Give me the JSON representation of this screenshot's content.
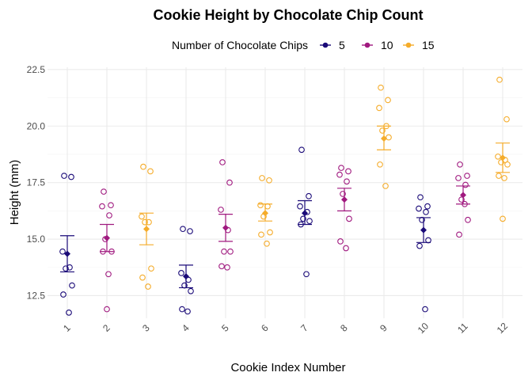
{
  "chart_data": {
    "type": "scatter",
    "title": "Cookie Height by Chocolate Chip Count",
    "xlabel": "Cookie Index Number",
    "ylabel": "Height (mm)",
    "ylim": [
      11.5,
      22.6
    ],
    "x_ticks": [
      "1",
      "2",
      "3",
      "4",
      "5",
      "6",
      "7",
      "8",
      "9",
      "10",
      "11",
      "12"
    ],
    "y_ticks": [
      12.5,
      15.0,
      17.5,
      20.0,
      22.5
    ],
    "y_tick_labels": [
      "12.5",
      "15.0",
      "17.5",
      "20.0",
      "22.5"
    ],
    "grid": true,
    "legend": {
      "title": "Number of Chocolate Chips",
      "position": "top"
    },
    "series": [
      {
        "name": "5",
        "color": "#1a0a78"
      },
      {
        "name": "10",
        "color": "#a0197f"
      },
      {
        "name": "15",
        "color": "#f5ac2a"
      }
    ],
    "groups": [
      {
        "x": 1,
        "series": "5",
        "mean": 14.35,
        "lower": 13.55,
        "upper": 15.15,
        "points": [
          17.8,
          17.75,
          14.45,
          13.75,
          13.7,
          12.95,
          12.55,
          11.75
        ]
      },
      {
        "x": 2,
        "series": "10",
        "mean": 15.05,
        "lower": 14.45,
        "upper": 15.65,
        "points": [
          17.1,
          16.5,
          16.45,
          16.05,
          15.0,
          14.45,
          14.45,
          13.45,
          11.9
        ]
      },
      {
        "x": 3,
        "series": "15",
        "mean": 15.45,
        "lower": 14.75,
        "upper": 16.15,
        "points": [
          18.2,
          18.0,
          16.0,
          15.75,
          15.75,
          13.7,
          13.3,
          12.9
        ]
      },
      {
        "x": 4,
        "series": "5",
        "mean": 13.35,
        "lower": 12.85,
        "upper": 13.85,
        "points": [
          15.45,
          15.35,
          13.5,
          13.2,
          12.95,
          12.7,
          11.9,
          11.8
        ]
      },
      {
        "x": 5,
        "series": "10",
        "mean": 15.5,
        "lower": 14.9,
        "upper": 16.1,
        "points": [
          18.4,
          17.5,
          16.3,
          15.4,
          14.45,
          14.45,
          13.8,
          13.75
        ]
      },
      {
        "x": 6,
        "series": "15",
        "mean": 16.15,
        "lower": 15.8,
        "upper": 16.55,
        "points": [
          17.7,
          17.6,
          16.5,
          16.45,
          16.0,
          15.3,
          15.2,
          14.8
        ]
      },
      {
        "x": 7,
        "series": "5",
        "mean": 16.15,
        "lower": 15.65,
        "upper": 16.7,
        "points": [
          18.95,
          16.9,
          16.45,
          16.2,
          15.9,
          15.8,
          15.65,
          13.45
        ]
      },
      {
        "x": 8,
        "series": "10",
        "mean": 16.75,
        "lower": 16.25,
        "upper": 17.25,
        "points": [
          18.15,
          18.0,
          17.85,
          17.55,
          17.0,
          15.9,
          14.9,
          14.6
        ]
      },
      {
        "x": 9,
        "series": "15",
        "mean": 19.45,
        "lower": 18.95,
        "upper": 20.0,
        "points": [
          21.7,
          21.15,
          20.8,
          20.0,
          19.8,
          19.5,
          18.3,
          17.35
        ]
      },
      {
        "x": 10,
        "series": "5",
        "mean": 15.4,
        "lower": 14.85,
        "upper": 15.95,
        "points": [
          16.85,
          16.45,
          16.35,
          16.2,
          15.85,
          14.95,
          14.7,
          11.9
        ]
      },
      {
        "x": 11,
        "series": "10",
        "mean": 16.95,
        "lower": 16.55,
        "upper": 17.35,
        "points": [
          18.3,
          17.8,
          17.7,
          17.4,
          16.75,
          15.85,
          15.2,
          16.55
        ]
      },
      {
        "x": 12,
        "series": "15",
        "mean": 18.6,
        "lower": 17.95,
        "upper": 19.25,
        "points": [
          22.05,
          20.3,
          18.65,
          18.5,
          18.4,
          18.3,
          17.8,
          17.7,
          15.9
        ]
      }
    ]
  }
}
